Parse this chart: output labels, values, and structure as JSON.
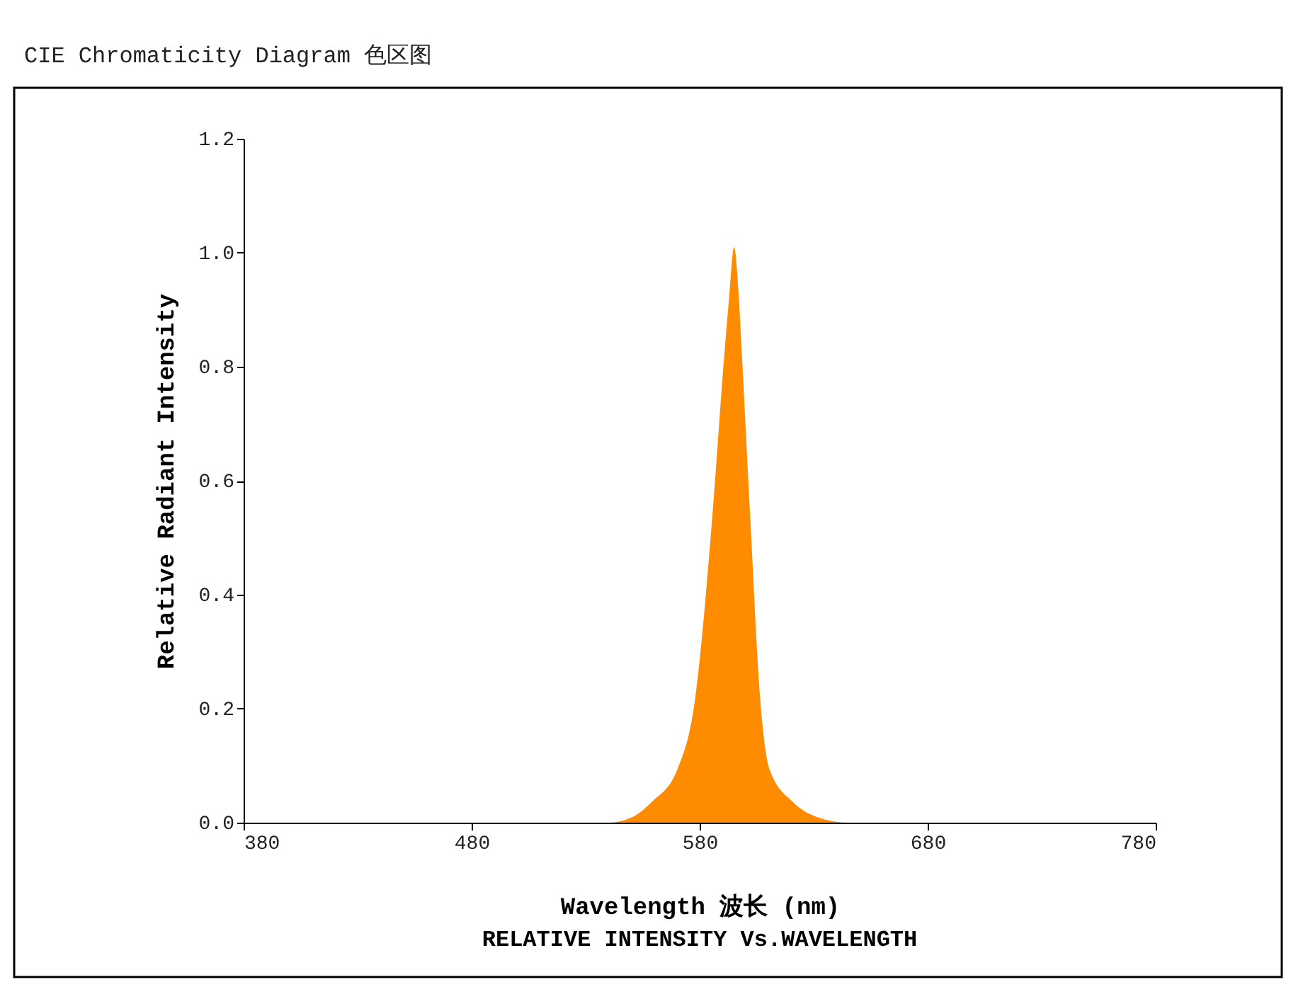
{
  "chart_data": {
    "type": "area",
    "title": "CIE Chromaticity Diagram 色区图",
    "xlabel": "Wavelength 波长 (nm)",
    "ylabel": "Relative Radiant Intensity",
    "annotations": [
      "RELATIVE INTENSITY Vs.WAVELENGTH"
    ],
    "x": [
      380,
      540,
      550.6,
      558.9,
      570.3,
      578.1,
      585.8,
      590.4,
      592.9,
      595.1,
      597.2,
      598.8,
      602.0,
      606.5,
      610.6,
      621,
      631.4,
      645,
      780
    ],
    "series": [
      {
        "color": "#ff8c00",
        "values": [
          0,
          0,
          0.01,
          0.036,
          0.094,
          0.22,
          0.55,
          0.8,
          0.92,
          1.01,
          0.92,
          0.8,
          0.55,
          0.22,
          0.094,
          0.036,
          0.01,
          0,
          0
        ]
      }
    ],
    "xlim": [
      380,
      780
    ],
    "xticks": [
      380,
      480,
      580,
      680,
      780
    ],
    "ylim": [
      0,
      1.2
    ],
    "yticks": [
      {
        "value": 0,
        "label": "0.0"
      },
      0.2,
      0.4,
      0.6,
      0.8,
      {
        "value": 1,
        "label": "1.0"
      },
      1.2
    ],
    "grid": false
  }
}
